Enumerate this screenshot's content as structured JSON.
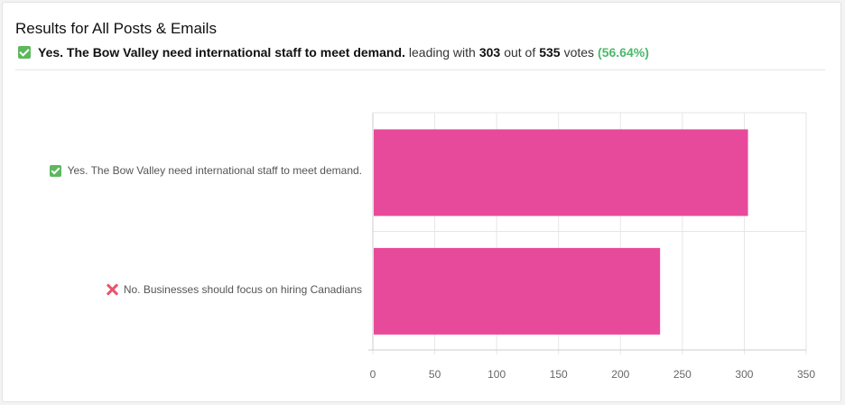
{
  "header": {
    "title": "Results for All Posts & Emails",
    "leader_option": "Yes. The Bow Valley need international staff to meet demand.",
    "leading_with_text": "leading with",
    "leader_votes": "303",
    "out_of_text": "out of",
    "total_votes": "535",
    "votes_text": "votes",
    "leader_percent": "(56.64%)"
  },
  "chart_data": {
    "type": "bar",
    "orientation": "horizontal",
    "categories": [
      "Yes. The Bow Valley need international staff to meet demand.",
      "No. Businesses should focus on hiring Canadians"
    ],
    "category_icons": [
      "check-icon",
      "x-icon"
    ],
    "values": [
      303,
      232
    ],
    "xlim": [
      0,
      350
    ],
    "xticks": [
      0,
      50,
      100,
      150,
      200,
      250,
      300,
      350
    ],
    "grid": true,
    "bar_color": "#e84a9b",
    "grid_color": "#e6e6e6",
    "axis_color": "#cccccc",
    "tick_label_color": "#666666"
  },
  "colors": {
    "check": "#5cb85c",
    "x_mark": "#e8556d",
    "percent": "#4cb86a"
  }
}
